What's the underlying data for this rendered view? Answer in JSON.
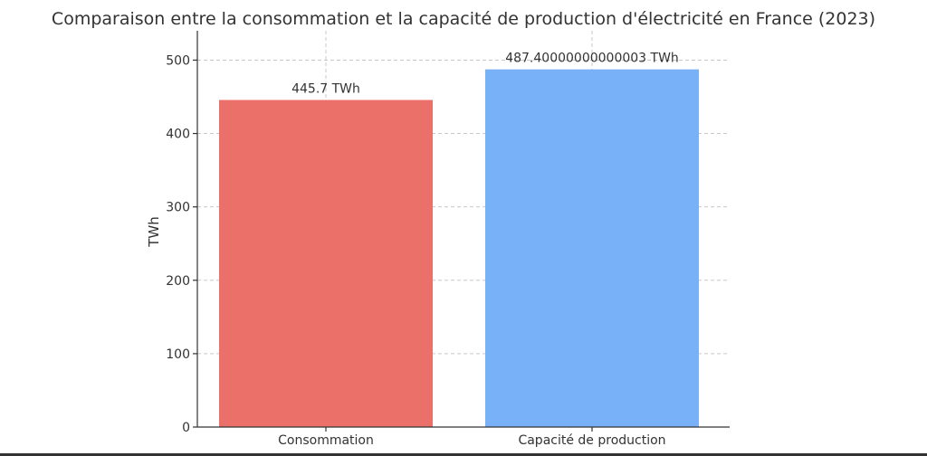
{
  "chart_data": {
    "type": "bar",
    "title": "Comparaison entre la consommation et la capacité de production d'électricité en France (2023)",
    "xlabel": "",
    "ylabel": "TWh",
    "categories": [
      "Consommation",
      "Capacité de production"
    ],
    "values": [
      445.7,
      487.40000000000003
    ],
    "data_labels": [
      "445.7 TWh",
      "487.40000000000003 TWh"
    ],
    "colors": [
      "#ec706a",
      "#78b1f8"
    ],
    "ylim": [
      0,
      540
    ],
    "yticks": [
      0,
      100,
      200,
      300,
      400,
      500
    ],
    "grid": true
  }
}
